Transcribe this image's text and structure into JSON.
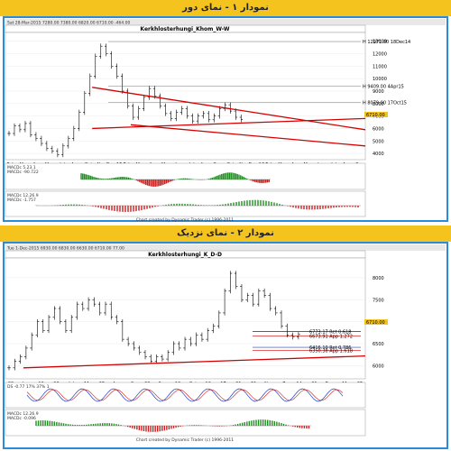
{
  "panels": [
    {
      "header": "نمودار ۱ - نمای دور",
      "toolbar_text": "Sat 28-Mar-2015   7280.00   7380.00   6820.00   6710.00   -464.00",
      "chart_data": {
        "type": "candlestick",
        "title": "Kerkhlosterhungi_Khom_W-W",
        "x_ticks": [
          "Feb",
          "Mar",
          "Apr",
          "May",
          "Jul",
          "Aug",
          "Oct",
          "Nov",
          "Dec 15",
          "Feb",
          "Mar",
          "Apr",
          "May",
          "Jun",
          "Jul",
          "Aug",
          "Sep",
          "Oct",
          "Nov",
          "Dec 16",
          "Feb",
          "Mar",
          "Apr",
          "May",
          "Jun",
          "Jul",
          "Aug",
          "Sep"
        ],
        "y_ticks": [
          4000,
          5000,
          6000,
          7000,
          8000,
          9000,
          10000,
          11000,
          12000,
          13000
        ],
        "ylim": [
          3500,
          13700
        ],
        "levels": [
          {
            "label": "H 12971.00 18Dec14",
            "value": 12971
          },
          {
            "label": "H 9409.00 4Apr15",
            "value": 9409
          },
          {
            "label": "H 8079.00 17Oct15",
            "value": 8079
          }
        ],
        "last_price": "6710.00",
        "series": [
          {
            "values": [
              5600,
              6200,
              5900,
              6400,
              5500,
              5200,
              4800,
              4400,
              4200,
              3900,
              4600,
              5200,
              6000,
              7300,
              8800,
              10200,
              11800,
              12600,
              12000,
              11000,
              10200,
              9000,
              7800,
              6900,
              7600,
              8500,
              9200,
              8600,
              7800,
              7200,
              6800,
              7300,
              7600,
              7000,
              6600,
              7000,
              7200,
              6700,
              7000,
              7600,
              7900,
              7400,
              6900,
              6710
            ]
          }
        ],
        "trendlines": [
          {
            "from": [
              39,
              6300
            ],
            "to": [
              112,
              4600
            ],
            "color": "#d40000"
          },
          {
            "from": [
              27,
              9300
            ],
            "to": [
              112,
              5900
            ],
            "color": "#d40000"
          },
          {
            "from": [
              27,
              6000
            ],
            "to": [
              112,
              6800
            ],
            "color": "#d40000"
          }
        ],
        "indicators": [
          {
            "title": "MACDc",
            "lines": [
              "MACDc 5.23.1",
              "MACDc -90.722"
            ]
          },
          {
            "title": "MACDc 12.26.9",
            "lines": [
              "MACDc 12.26.9",
              "MACDc -1.757"
            ]
          }
        ],
        "footer": "Chart created by Dynamic Trader (c) 1996-2011"
      }
    },
    {
      "header": "نمودار ۲ - نمای نزدیک",
      "toolbar_text": "Tue 1-Dec-2015   6930.00   6830.00   6630.00   6710.00   77.00",
      "chart_data": {
        "type": "candlestick",
        "title": "Kerkhlosterhungi_K_D-D",
        "x_ticks": [
          "28",
          "Jun",
          "12",
          "28",
          "Jul",
          "11",
          "25",
          "Aug",
          "8",
          "22",
          "Sep",
          "12",
          "Oct",
          "10",
          "17",
          "21",
          "31",
          "Nov",
          "7",
          "14",
          "21",
          "Dec",
          "11",
          "25"
        ],
        "y_ticks": [
          6000,
          6500,
          7000,
          7500,
          8000
        ],
        "ylim": [
          5700,
          8450
        ],
        "levels": [
          {
            "label": "6773.17 Ret 0.618",
            "value": 6773,
            "color": "#000000"
          },
          {
            "label": "6673.91 App 1.272",
            "value": 6674,
            "color": "#d40000"
          },
          {
            "label": "6416.10 Ret 0.786",
            "value": 6416,
            "color": "#1f3cc4"
          },
          {
            "label": "6350.38 App 1.618",
            "value": 6350,
            "color": "#d40000"
          }
        ],
        "last_price": "6710.00",
        "trendline": {
          "from": [
            0,
            5950
          ],
          "to": [
            100,
            6220
          ],
          "color": "#d40000"
        },
        "series": [
          {
            "values": [
              5950,
              6100,
              6200,
              6400,
              6700,
              7000,
              6800,
              7100,
              7300,
              7000,
              6800,
              7100,
              7400,
              7300,
              7500,
              7400,
              7200,
              7400,
              7100,
              7000,
              6600,
              6500,
              6400,
              6300,
              6200,
              6100,
              6200,
              6150,
              6300,
              6500,
              6400,
              6600,
              6500,
              6700,
              6600,
              6800,
              6900,
              7200,
              7700,
              8100,
              7800,
              7500,
              7600,
              7400,
              7700,
              7600,
              7300,
              7200,
              6900,
              6700,
              6650,
              6710
            ]
          }
        ],
        "indicators": [
          {
            "title": "DS",
            "lines": [
              "DS -0.77 17% 37% 1"
            ]
          },
          {
            "title": "MACDc 12.26.9",
            "lines": [
              "MACDc 12.26.9",
              "MACDc -0.096"
            ]
          }
        ],
        "footer": "Chart created by Dynamic Trader (c) 1996-2011"
      }
    }
  ]
}
